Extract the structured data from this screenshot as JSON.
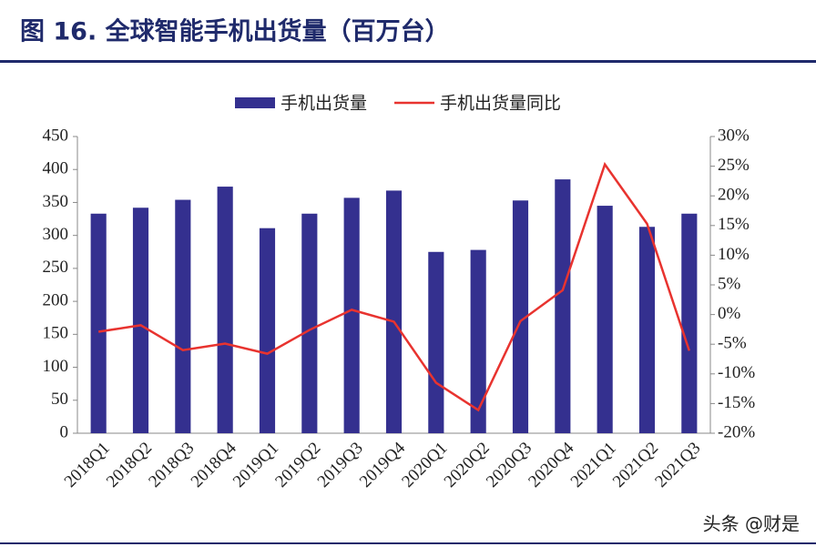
{
  "chart_data": {
    "type": "bar_line",
    "title": "图 16. 全球智能手机出货量（百万台）",
    "categories": [
      "2018Q1",
      "2018Q2",
      "2018Q3",
      "2018Q4",
      "2019Q1",
      "2019Q2",
      "2019Q3",
      "2019Q4",
      "2020Q1",
      "2020Q2",
      "2020Q3",
      "2020Q4",
      "2021Q1",
      "2021Q2",
      "2021Q3"
    ],
    "series": [
      {
        "name": "手机出货量",
        "type": "bar",
        "color": "#34308f",
        "values": [
          333,
          342,
          354,
          374,
          311,
          333,
          357,
          368,
          275,
          278,
          353,
          385,
          345,
          313,
          333
        ]
      },
      {
        "name": "手机出货量同比",
        "type": "line",
        "axis": "y2",
        "color": "#e8332f",
        "values": [
          -2.9,
          -1.8,
          -6.0,
          -4.9,
          -6.6,
          -2.6,
          0.8,
          -1.2,
          -11.5,
          -16.1,
          -1.1,
          4.1,
          25.3,
          15.3,
          -6.1
        ]
      }
    ],
    "ylim": [
      0,
      450
    ],
    "yticks": [
      0,
      50,
      100,
      150,
      200,
      250,
      300,
      350,
      400,
      450
    ],
    "y2lim": [
      -20,
      30
    ],
    "y2ticks": [
      {
        "value": -20,
        "label": "-20%"
      },
      {
        "value": -15,
        "label": "-15%"
      },
      {
        "value": -10,
        "label": "-10%"
      },
      {
        "value": -5,
        "label": "-5%"
      },
      {
        "value": 0,
        "label": "0%"
      },
      {
        "value": 5,
        "label": "5%"
      },
      {
        "value": 10,
        "label": "10%"
      },
      {
        "value": 15,
        "label": "15%"
      },
      {
        "value": 20,
        "label": "20%"
      },
      {
        "value": 25,
        "label": "25%"
      },
      {
        "value": 30,
        "label": "30%"
      }
    ],
    "legend": "top",
    "watermark": "头条 @财是"
  }
}
